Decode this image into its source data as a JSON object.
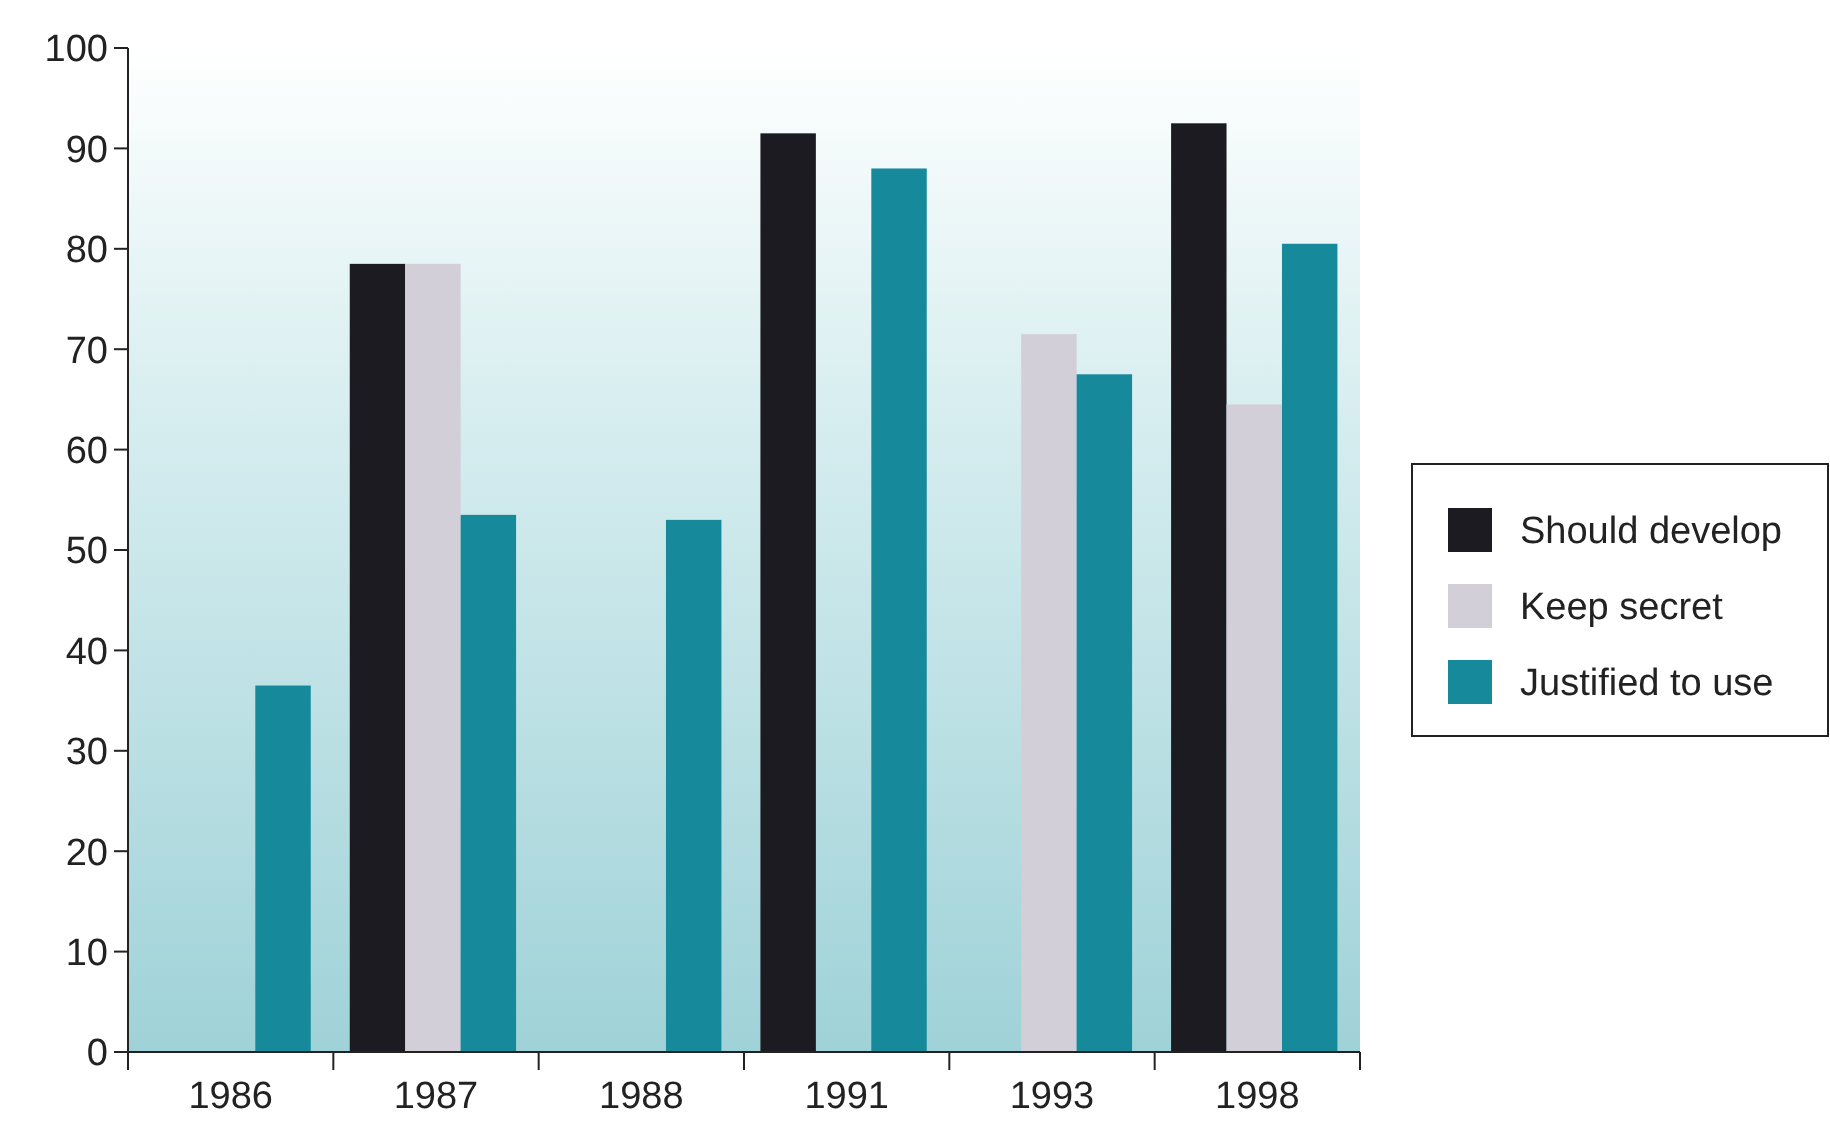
{
  "chart_data": {
    "type": "bar",
    "categories": [
      "1986",
      "1987",
      "1988",
      "1991",
      "1993",
      "1998"
    ],
    "series": [
      {
        "name": "Should develop",
        "color": "#1c1b22",
        "values": [
          null,
          78.5,
          null,
          91.5,
          null,
          92.5
        ]
      },
      {
        "name": "Keep secret",
        "color": "#d3cfd8",
        "values": [
          null,
          78.5,
          null,
          null,
          71.5,
          64.5
        ]
      },
      {
        "name": "Justified to use",
        "color": "#16899a",
        "values": [
          36.5,
          53.5,
          53,
          88,
          67.5,
          80.5
        ]
      }
    ],
    "ylim": [
      0,
      100
    ],
    "yticks": [
      0,
      10,
      20,
      30,
      40,
      50,
      60,
      70,
      80,
      90,
      100
    ],
    "grid": false,
    "legend": "right"
  }
}
